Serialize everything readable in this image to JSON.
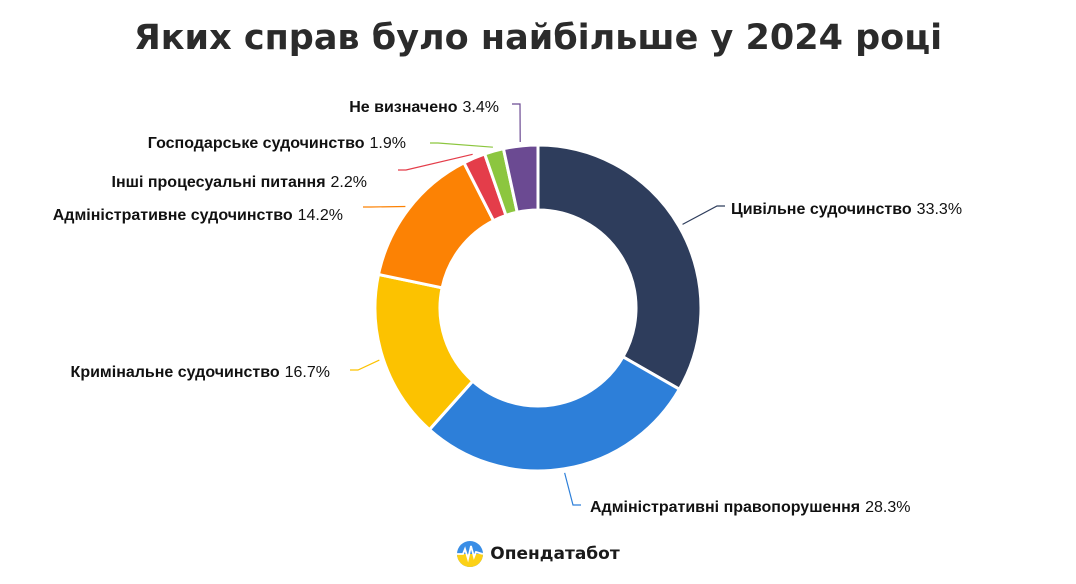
{
  "chart_data": {
    "type": "pie",
    "title": "Яких справ було найбільше у 2024 році",
    "slices": [
      {
        "label": "Цивільне судочинство",
        "value": 33.3,
        "display": "33.3%",
        "color": "#2e3d5c"
      },
      {
        "label": "Адміністративні правопорушення",
        "value": 28.3,
        "display": "28.3%",
        "color": "#2d7fd9"
      },
      {
        "label": "Кримінальне судочинство",
        "value": 16.7,
        "display": "16.7%",
        "color": "#fcc200"
      },
      {
        "label": "Адміністративне судочинство",
        "value": 14.2,
        "display": "14.2%",
        "color": "#fc8204"
      },
      {
        "label": "Інші процесуальні питання",
        "value": 2.2,
        "display": "2.2%",
        "color": "#e43d4a"
      },
      {
        "label": "Господарське судочинство",
        "value": 1.9,
        "display": "1.9%",
        "color": "#8cc63f"
      },
      {
        "label": "Не визначено",
        "value": 3.4,
        "display": "3.4%",
        "color": "#6b4a92"
      }
    ]
  },
  "footer": {
    "brand": "Опендатабот",
    "logo_icon": "opendatabot-logo-icon"
  }
}
